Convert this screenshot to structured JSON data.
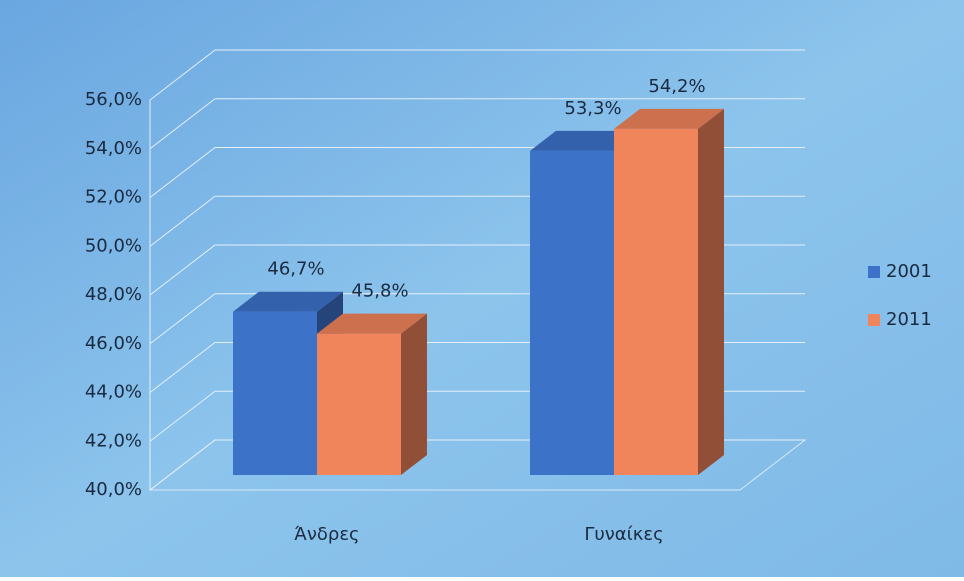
{
  "chart_data": {
    "type": "bar3d",
    "categories": [
      "Άνδρες",
      "Γυναίκες"
    ],
    "series": [
      {
        "name": "2001",
        "color": "#3d72c9",
        "values": [
          46.7,
          53.3
        ],
        "value_labels": [
          "46,7%",
          "53,3%"
        ]
      },
      {
        "name": "2011",
        "color": "#f0845a",
        "values": [
          45.8,
          54.2
        ],
        "value_labels": [
          "45,8%",
          "54,2%"
        ]
      }
    ],
    "ylim": [
      40,
      56
    ],
    "yticks": [
      {
        "value": 40,
        "label": "40,0%"
      },
      {
        "value": 42,
        "label": "42,0%"
      },
      {
        "value": 44,
        "label": "44,0%"
      },
      {
        "value": 46,
        "label": "46,0%"
      },
      {
        "value": 48,
        "label": "48,0%"
      },
      {
        "value": 50,
        "label": "50,0%"
      },
      {
        "value": 52,
        "label": "52,0%"
      },
      {
        "value": 54,
        "label": "54,0%"
      },
      {
        "value": 56,
        "label": "56,0%"
      }
    ],
    "grid": true,
    "legend": "right"
  }
}
